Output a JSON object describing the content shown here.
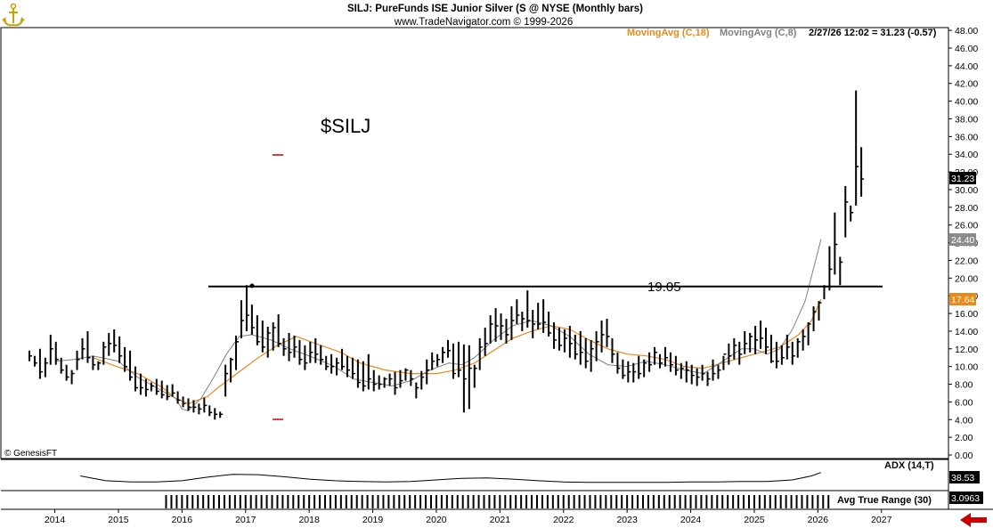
{
  "header": {
    "line1": "SILJ:  PureFunds ISE Junior Silver (S @ NYSE  (Monthly bars)",
    "line2": "www.TradeNavigator.com © 1999-2026"
  },
  "legend": {
    "ma18": "MovingAvg (C,18)",
    "ma8": "MovingAvg (C,8)",
    "quote": "2/27/26 12:02 = 31.23 (-0.57)"
  },
  "colors": {
    "ma18": "#e8891a",
    "ma8": "#808080",
    "bars": "#000000",
    "resistance": "#000000",
    "arrow": "#cc0000",
    "price_tag_bg": "#000000",
    "ma8_tag_bg": "#8c8c8c",
    "ma18_tag_bg": "#e8891a"
  },
  "watermark_symbol": "$SILJ",
  "copyright": "© GenesisFT",
  "logo_icon": "anchor-icon",
  "indicators": {
    "adx_label": "ADX (14,T)",
    "adx_value": "38.53",
    "atr_label": "Avg True Range (30)",
    "atr_value": "3.0963"
  },
  "tags": {
    "last_price": "31.23",
    "ma8": "24.40",
    "ma18": "17.64"
  },
  "chart_data": {
    "type": "ohlc",
    "title": "SILJ:  PureFunds ISE Junior Silver (S @ NYSE  (Monthly bars)",
    "ylim": [
      0,
      48
    ],
    "y_ticks": [
      "0.00",
      "2.00",
      "4.00",
      "6.00",
      "8.00",
      "10.00",
      "12.00",
      "14.00",
      "16.00",
      "18.00",
      "20.00",
      "22.00",
      "24.00",
      "26.00",
      "28.00",
      "30.00",
      "32.00",
      "34.00",
      "36.00",
      "38.00",
      "40.00",
      "42.00",
      "44.00",
      "46.00",
      "48.00"
    ],
    "x_ticks": [
      "2014",
      "2015",
      "2016",
      "2017",
      "2018",
      "2019",
      "2020",
      "2021",
      "2022",
      "2023",
      "2024",
      "2025",
      "2026",
      "2027"
    ],
    "xlim": [
      2013.0,
      2027.4
    ],
    "grid": false,
    "legend_position": "top-right",
    "annotations": [
      {
        "text": "19.05",
        "y": 19.05,
        "x_from": 2015.85,
        "x_to": 2026.3
      }
    ],
    "series": [
      {
        "name": "SILJ",
        "kind": "ohlc",
        "start": 2013.6,
        "step": 0.08333,
        "highs": [
          11.8,
          11.2,
          12.0,
          11.0,
          13.6,
          12.8,
          11.0,
          10.2,
          9.6,
          11.8,
          13.2,
          14.0,
          11.2,
          10.6,
          12.8,
          13.8,
          14.2,
          13.4,
          12.2,
          11.8,
          10.0,
          9.2,
          8.6,
          8.2,
          8.6,
          8.4,
          7.9,
          8.0,
          7.2,
          6.6,
          6.4,
          6.2,
          5.8,
          6.5,
          5.6,
          5.3,
          4.9,
          10.2,
          11.0,
          13.5,
          17.5,
          19.2,
          17.0,
          15.8,
          15.2,
          14.5,
          15.0,
          15.9,
          13.2,
          13.8,
          13.5,
          13.0,
          12.4,
          12.8,
          13.2,
          12.4,
          11.2,
          11.4,
          11.0,
          12.0,
          11.2,
          11.0,
          10.8,
          10.6,
          11.4,
          9.6,
          9.0,
          8.8,
          9.2,
          9.4,
          9.6,
          9.8,
          9.6,
          8.2,
          9.5,
          10.8,
          11.6,
          11.4,
          12.2,
          13.0,
          12.6,
          12.8,
          12.5,
          12.4,
          10.2,
          13.2,
          14.4,
          15.8,
          16.6,
          16.0,
          15.4,
          16.8,
          17.6,
          16.2,
          18.6,
          16.4,
          17.2,
          17.6,
          16.2,
          15.0,
          14.4,
          14.2,
          14.6,
          13.6,
          14.0,
          13.2,
          13.0,
          14.0,
          15.2,
          15.4,
          13.2,
          11.6,
          10.8,
          10.6,
          10.4,
          11.2,
          10.8,
          11.6,
          12.2,
          11.4,
          12.2,
          11.6,
          11.2,
          10.4,
          10.6,
          10.2,
          9.8,
          10.2,
          9.4,
          10.8,
          10.2,
          11.2,
          12.6,
          13.2,
          12.8,
          14.0,
          13.8,
          14.6,
          15.2,
          14.4,
          13.6,
          12.8,
          12.4,
          13.6,
          12.8,
          13.2,
          14.2,
          15.0,
          16.8,
          17.4,
          19.2,
          23.6,
          27.4,
          22.4,
          30.4,
          28.2,
          41.2,
          34.8
        ],
        "lows": [
          10.6,
          10.0,
          8.6,
          8.8,
          10.2,
          10.2,
          9.2,
          8.4,
          8.0,
          9.6,
          10.8,
          10.4,
          9.6,
          9.6,
          10.2,
          11.2,
          11.6,
          10.4,
          9.4,
          8.4,
          7.2,
          6.8,
          6.6,
          7.2,
          6.8,
          6.4,
          6.2,
          6.6,
          5.8,
          5.4,
          5.0,
          4.8,
          4.6,
          4.8,
          4.4,
          4.0,
          4.2,
          6.6,
          8.2,
          9.6,
          13.2,
          14.0,
          13.6,
          12.4,
          11.6,
          11.0,
          11.8,
          12.2,
          11.2,
          10.6,
          11.0,
          10.2,
          9.6,
          10.4,
          10.4,
          10.2,
          9.6,
          9.2,
          9.0,
          9.6,
          8.8,
          8.6,
          7.6,
          7.2,
          7.4,
          7.2,
          7.4,
          7.6,
          7.8,
          6.8,
          7.6,
          8.4,
          7.8,
          6.4,
          7.4,
          8.0,
          9.6,
          10.0,
          10.4,
          11.0,
          8.6,
          8.8,
          4.8,
          5.2,
          7.6,
          9.6,
          11.2,
          12.6,
          12.8,
          13.0,
          12.6,
          13.0,
          14.8,
          14.0,
          14.4,
          13.2,
          14.2,
          13.8,
          13.4,
          12.0,
          11.8,
          11.6,
          11.0,
          10.8,
          10.2,
          9.8,
          9.4,
          10.6,
          11.6,
          12.2,
          10.4,
          9.2,
          8.6,
          8.2,
          8.2,
          8.6,
          8.8,
          9.4,
          10.2,
          9.8,
          10.0,
          9.4,
          9.0,
          8.6,
          8.2,
          8.0,
          7.8,
          8.4,
          7.8,
          8.4,
          8.6,
          9.6,
          10.2,
          10.8,
          10.2,
          11.4,
          11.6,
          11.4,
          12.0,
          11.4,
          10.4,
          9.8,
          10.2,
          10.8,
          10.2,
          11.0,
          11.8,
          12.4,
          14.0,
          15.2,
          17.6,
          18.6,
          20.4,
          19.2,
          24.6,
          26.4,
          28.2,
          29.2
        ],
        "closes": [
          11.2,
          10.4,
          9.4,
          10.4,
          12.0,
          10.8,
          9.6,
          8.8,
          9.2,
          10.8,
          12.0,
          11.0,
          10.2,
          10.4,
          12.2,
          12.6,
          12.4,
          11.2,
          10.0,
          8.8,
          7.6,
          7.6,
          7.4,
          7.8,
          7.2,
          6.8,
          6.6,
          7.0,
          6.2,
          5.8,
          5.4,
          5.4,
          5.2,
          5.6,
          4.8,
          4.6,
          4.6,
          9.2,
          10.8,
          12.8,
          15.2,
          15.8,
          14.4,
          12.8,
          12.2,
          13.8,
          14.4,
          12.6,
          12.0,
          11.6,
          12.2,
          10.8,
          10.4,
          11.6,
          11.4,
          10.8,
          10.0,
          10.0,
          10.4,
          10.0,
          9.6,
          9.2,
          8.2,
          7.8,
          8.6,
          8.0,
          8.0,
          8.6,
          8.6,
          7.6,
          8.4,
          9.6,
          8.6,
          7.6,
          8.8,
          9.6,
          10.6,
          10.8,
          11.6,
          11.8,
          9.2,
          9.6,
          8.6,
          9.8,
          9.8,
          12.2,
          12.6,
          14.8,
          14.6,
          14.6,
          13.6,
          15.2,
          15.8,
          15.4,
          15.2,
          14.8,
          14.8,
          15.0,
          13.8,
          13.0,
          12.4,
          13.2,
          12.6,
          11.4,
          11.6,
          10.6,
          12.0,
          12.8,
          13.6,
          13.4,
          11.4,
          9.8,
          9.0,
          9.4,
          9.4,
          9.2,
          10.4,
          10.2,
          11.6,
          10.4,
          11.0,
          10.2,
          9.6,
          9.8,
          9.6,
          9.0,
          8.8,
          9.2,
          8.6,
          9.2,
          9.6,
          11.4,
          11.2,
          12.4,
          11.4,
          12.6,
          13.4,
          13.0,
          13.2,
          12.2,
          10.6,
          10.6,
          11.0,
          12.2,
          11.2,
          12.8,
          13.4,
          14.8,
          16.2,
          17.2,
          19.0,
          21.0,
          23.8,
          21.8,
          28.6,
          27.4,
          32.6,
          31.2
        ]
      },
      {
        "name": "MovingAvg (C,8)",
        "kind": "line",
        "points": [
          [
            2014.0,
            10.6
          ],
          [
            2014.3,
            10.8
          ],
          [
            2014.6,
            11.2
          ],
          [
            2015.0,
            10.6
          ],
          [
            2015.3,
            8.8
          ],
          [
            2015.6,
            7.6
          ],
          [
            2015.9,
            6.4
          ],
          [
            2016.0,
            5.2
          ],
          [
            2016.1,
            5.0
          ],
          [
            2016.3,
            6.4
          ],
          [
            2016.5,
            8.8
          ],
          [
            2016.7,
            11.4
          ],
          [
            2016.9,
            13.4
          ],
          [
            2017.1,
            13.6
          ],
          [
            2017.4,
            13.0
          ],
          [
            2017.7,
            12.0
          ],
          [
            2018.0,
            11.2
          ],
          [
            2018.4,
            10.0
          ],
          [
            2018.7,
            8.6
          ],
          [
            2019.0,
            8.2
          ],
          [
            2019.3,
            7.8
          ],
          [
            2019.6,
            8.4
          ],
          [
            2019.9,
            9.6
          ],
          [
            2020.2,
            10.4
          ],
          [
            2020.4,
            10.2
          ],
          [
            2020.6,
            11.0
          ],
          [
            2020.9,
            13.0
          ],
          [
            2021.2,
            14.6
          ],
          [
            2021.5,
            15.2
          ],
          [
            2021.8,
            14.6
          ],
          [
            2022.1,
            13.4
          ],
          [
            2022.4,
            11.4
          ],
          [
            2022.7,
            10.2
          ],
          [
            2023.0,
            10.0
          ],
          [
            2023.3,
            10.6
          ],
          [
            2023.6,
            10.2
          ],
          [
            2023.9,
            9.6
          ],
          [
            2024.2,
            9.2
          ],
          [
            2024.5,
            10.6
          ],
          [
            2024.8,
            12.0
          ],
          [
            2025.0,
            12.0
          ],
          [
            2025.2,
            11.4
          ],
          [
            2025.4,
            12.0
          ],
          [
            2025.6,
            14.2
          ],
          [
            2025.8,
            17.4
          ],
          [
            2025.95,
            21.6
          ],
          [
            2026.05,
            24.4
          ]
        ]
      },
      {
        "name": "MovingAvg (C,18)",
        "kind": "line",
        "points": [
          [
            2014.6,
            11.0
          ],
          [
            2014.9,
            10.2
          ],
          [
            2015.3,
            9.2
          ],
          [
            2015.7,
            7.6
          ],
          [
            2015.9,
            6.4
          ],
          [
            2016.1,
            5.8
          ],
          [
            2016.4,
            6.6
          ],
          [
            2016.6,
            7.8
          ],
          [
            2016.9,
            9.4
          ],
          [
            2017.2,
            11.0
          ],
          [
            2017.5,
            12.4
          ],
          [
            2017.8,
            13.4
          ],
          [
            2018.1,
            12.6
          ],
          [
            2018.5,
            11.6
          ],
          [
            2018.8,
            10.4
          ],
          [
            2019.2,
            9.6
          ],
          [
            2019.6,
            9.2
          ],
          [
            2020.0,
            9.2
          ],
          [
            2020.3,
            9.6
          ],
          [
            2020.6,
            10.4
          ],
          [
            2020.9,
            11.8
          ],
          [
            2021.2,
            13.2
          ],
          [
            2021.5,
            14.0
          ],
          [
            2021.8,
            14.6
          ],
          [
            2022.1,
            14.2
          ],
          [
            2022.4,
            13.0
          ],
          [
            2022.7,
            12.0
          ],
          [
            2023.0,
            11.4
          ],
          [
            2023.3,
            11.2
          ],
          [
            2023.6,
            10.8
          ],
          [
            2023.9,
            10.0
          ],
          [
            2024.2,
            9.8
          ],
          [
            2024.5,
            10.4
          ],
          [
            2024.8,
            11.0
          ],
          [
            2025.1,
            11.6
          ],
          [
            2025.4,
            12.2
          ],
          [
            2025.7,
            13.6
          ],
          [
            2025.9,
            15.2
          ],
          [
            2026.05,
            17.6
          ]
        ]
      },
      {
        "name": "ADX (14,T)",
        "kind": "line",
        "ylim": [
          0,
          60
        ],
        "points": [
          [
            2014.4,
            30
          ],
          [
            2014.8,
            18
          ],
          [
            2015.2,
            15
          ],
          [
            2015.6,
            15
          ],
          [
            2016.0,
            18
          ],
          [
            2016.4,
            27
          ],
          [
            2016.8,
            34
          ],
          [
            2017.2,
            33
          ],
          [
            2017.6,
            28
          ],
          [
            2018.0,
            22
          ],
          [
            2018.4,
            18
          ],
          [
            2018.8,
            16
          ],
          [
            2019.2,
            15
          ],
          [
            2019.6,
            16
          ],
          [
            2020.0,
            20
          ],
          [
            2020.4,
            24
          ],
          [
            2020.8,
            25
          ],
          [
            2021.2,
            22
          ],
          [
            2021.6,
            18
          ],
          [
            2022.0,
            15
          ],
          [
            2022.4,
            14
          ],
          [
            2022.8,
            14
          ],
          [
            2023.2,
            14
          ],
          [
            2023.6,
            14
          ],
          [
            2024.0,
            15
          ],
          [
            2024.4,
            15
          ],
          [
            2024.8,
            16
          ],
          [
            2025.2,
            16
          ],
          [
            2025.6,
            20
          ],
          [
            2025.9,
            30
          ],
          [
            2026.05,
            38.53
          ]
        ]
      },
      {
        "name": "Avg True Range (30)",
        "kind": "histogram",
        "start": 2015.75,
        "step": 0.08333,
        "count": 126,
        "last": 3.0963
      }
    ]
  }
}
